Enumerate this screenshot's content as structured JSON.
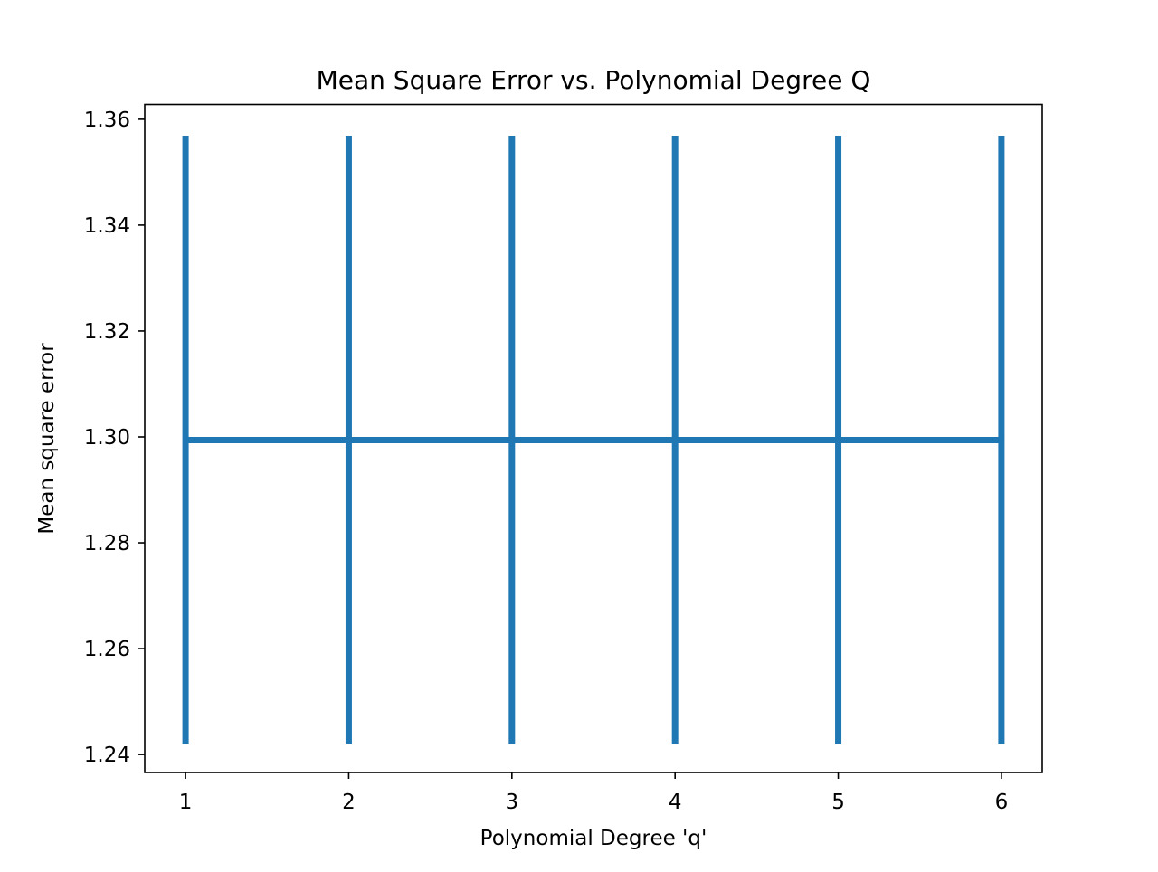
{
  "chart_data": {
    "type": "line",
    "title": "Mean Square Error vs. Polynomial Degree Q",
    "xlabel": "Polynomial Degree 'q'",
    "ylabel": "Mean square error",
    "xlim": [
      0.75,
      6.25
    ],
    "ylim": [
      1.2366,
      1.3628
    ],
    "xticks": [
      1,
      2,
      3,
      4,
      5,
      6
    ],
    "xtick_labels": [
      "1",
      "2",
      "3",
      "4",
      "5",
      "6"
    ],
    "yticks": [
      1.24,
      1.26,
      1.28,
      1.3,
      1.32,
      1.34,
      1.36
    ],
    "ytick_labels": [
      "1.24",
      "1.26",
      "1.28",
      "1.30",
      "1.32",
      "1.34",
      "1.36"
    ],
    "grid": false,
    "legend": "none",
    "series": [
      {
        "x": [
          1,
          2,
          3,
          4,
          5,
          6
        ],
        "y": [
          1.2994,
          1.2994,
          1.2994,
          1.2994,
          1.2994,
          1.2994
        ],
        "yerr": [
          0.0575,
          0.0575,
          0.0575,
          0.0575,
          0.0575,
          0.0575
        ],
        "color": "#1f77b4"
      }
    ]
  }
}
